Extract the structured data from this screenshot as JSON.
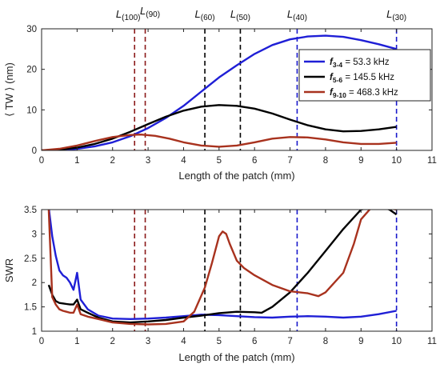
{
  "chart_data": [
    {
      "type": "line",
      "xlabel": "Length of the patch (mm)",
      "ylabel": "⟨ TW ⟩ (nm)",
      "xlim": [
        0,
        11
      ],
      "ylim": [
        0,
        30
      ],
      "xticks": [
        0,
        1,
        2,
        3,
        4,
        5,
        6,
        7,
        8,
        9,
        10,
        11
      ],
      "yticks": [
        0,
        10,
        20,
        30
      ],
      "legend_position": "top-right",
      "markers": [
        {
          "label": "L",
          "sub": "(100)",
          "x": 2.62,
          "color": "#8b1a1a"
        },
        {
          "label": "L",
          "sub": "(90)",
          "x": 2.92,
          "color": "#8b1a1a"
        },
        {
          "label": "L",
          "sub": "(60)",
          "x": 4.6,
          "color": "#000000"
        },
        {
          "label": "L",
          "sub": "(50)",
          "x": 5.6,
          "color": "#000000"
        },
        {
          "label": "L",
          "sub": "(40)",
          "x": 7.2,
          "color": "#1a1acc"
        },
        {
          "label": "L",
          "sub": "(30)",
          "x": 10.0,
          "color": "#1a1acc"
        }
      ],
      "series": [
        {
          "name": "f3-4 = 53.3 kHz",
          "legend_f": "f",
          "legend_sub": "3-4",
          "legend_rest": " = 53.3 kHz",
          "color": "#1f1fd6",
          "x": [
            0,
            0.5,
            1,
            1.5,
            2,
            2.5,
            3,
            3.5,
            4,
            4.5,
            5,
            5.5,
            6,
            6.5,
            7,
            7.5,
            8,
            8.5,
            9,
            9.5,
            10
          ],
          "y": [
            0,
            0.1,
            0.4,
            1.0,
            2.0,
            3.5,
            5.5,
            8.0,
            11.0,
            14.5,
            18.0,
            21.0,
            23.8,
            26.0,
            27.4,
            28.1,
            28.3,
            28.0,
            27.2,
            26.2,
            25.0
          ]
        },
        {
          "name": "f5-6 = 145.5 kHz",
          "legend_f": "f",
          "legend_sub": "5-6",
          "legend_rest": " = 145.5 kHz",
          "color": "#000000",
          "x": [
            0,
            0.5,
            1,
            1.5,
            2,
            2.5,
            3,
            3.5,
            4,
            4.5,
            5,
            5.5,
            6,
            6.5,
            7,
            7.5,
            8,
            8.5,
            9,
            9.5,
            10
          ],
          "y": [
            0,
            0.2,
            0.7,
            1.6,
            2.9,
            4.6,
            6.5,
            8.3,
            9.8,
            10.8,
            11.2,
            11.0,
            10.3,
            9.1,
            7.6,
            6.2,
            5.2,
            4.7,
            4.8,
            5.2,
            5.8
          ]
        },
        {
          "name": "f9-10 = 468.3 kHz",
          "legend_f": "f",
          "legend_sub": "9-10",
          "legend_rest": " = 468.3 kHz",
          "color": "#a8321e",
          "x": [
            0,
            0.5,
            1,
            1.5,
            2,
            2.5,
            2.8,
            3.2,
            3.6,
            4,
            4.5,
            5,
            5.5,
            6,
            6.5,
            7,
            7.5,
            8,
            8.5,
            9,
            9.5,
            10
          ],
          "y": [
            0,
            0.4,
            1.2,
            2.3,
            3.3,
            3.8,
            3.9,
            3.6,
            2.9,
            2.0,
            1.2,
            0.9,
            1.2,
            2.0,
            2.9,
            3.3,
            3.2,
            2.7,
            2.0,
            1.6,
            1.6,
            1.9
          ]
        }
      ]
    },
    {
      "type": "line",
      "xlabel": "Length of the patch (mm)",
      "ylabel": "SWR",
      "xlim": [
        0,
        11
      ],
      "ylim": [
        1,
        3.5
      ],
      "xticks": [
        0,
        1,
        2,
        3,
        4,
        5,
        6,
        7,
        8,
        9,
        10,
        11
      ],
      "yticks": [
        1,
        1.5,
        2,
        2.5,
        3,
        3.5
      ],
      "markers_x": [
        2.62,
        2.92,
        4.6,
        5.6,
        7.2,
        10.0
      ],
      "series": [
        {
          "name": "f3-4 = 53.3 kHz",
          "color": "#1f1fd6",
          "x": [
            0.2,
            0.3,
            0.4,
            0.5,
            0.6,
            0.7,
            0.8,
            0.9,
            1.0,
            1.1,
            1.3,
            1.6,
            2.0,
            2.5,
            3.0,
            3.5,
            4.0,
            4.5,
            5.0,
            5.5,
            6.0,
            6.5,
            7.0,
            7.5,
            8.0,
            8.5,
            9.0,
            9.5,
            10.0
          ],
          "y": [
            3.55,
            2.95,
            2.55,
            2.25,
            2.15,
            2.1,
            2.0,
            1.85,
            2.2,
            1.65,
            1.45,
            1.32,
            1.26,
            1.25,
            1.26,
            1.28,
            1.31,
            1.34,
            1.33,
            1.31,
            1.29,
            1.28,
            1.3,
            1.31,
            1.3,
            1.28,
            1.3,
            1.35,
            1.42
          ]
        },
        {
          "name": "f5-6 = 145.5 kHz",
          "color": "#000000",
          "x": [
            0.2,
            0.3,
            0.4,
            0.5,
            0.6,
            0.7,
            0.8,
            0.9,
            1.0,
            1.1,
            1.3,
            1.6,
            2.0,
            2.5,
            3.0,
            3.5,
            4.0,
            4.5,
            5.0,
            5.5,
            6.0,
            6.2,
            6.5,
            7.0,
            7.5,
            8.0,
            8.5,
            9.0,
            9.3,
            9.6,
            9.8,
            10.0
          ],
          "y": [
            1.95,
            1.75,
            1.62,
            1.58,
            1.57,
            1.56,
            1.55,
            1.55,
            1.65,
            1.45,
            1.38,
            1.28,
            1.2,
            1.18,
            1.2,
            1.23,
            1.28,
            1.32,
            1.37,
            1.4,
            1.39,
            1.38,
            1.5,
            1.8,
            2.2,
            2.65,
            3.1,
            3.5,
            3.55,
            3.55,
            3.5,
            3.4
          ]
        },
        {
          "name": "f9-10 = 468.3 kHz",
          "color": "#a8321e",
          "x": [
            0.2,
            0.25,
            0.3,
            0.4,
            0.5,
            0.6,
            0.7,
            0.8,
            0.9,
            1.0,
            1.1,
            1.3,
            1.6,
            2.0,
            2.5,
            3.0,
            3.5,
            4.0,
            4.3,
            4.6,
            4.8,
            5.0,
            5.1,
            5.2,
            5.3,
            5.5,
            5.7,
            6.0,
            6.5,
            7.0,
            7.5,
            7.8,
            8.0,
            8.5,
            8.8,
            9.0,
            9.3,
            9.6,
            10.0
          ],
          "y": [
            3.5,
            2.6,
            1.7,
            1.55,
            1.45,
            1.42,
            1.4,
            1.38,
            1.38,
            1.55,
            1.35,
            1.3,
            1.25,
            1.18,
            1.15,
            1.14,
            1.15,
            1.2,
            1.4,
            1.9,
            2.4,
            2.95,
            3.05,
            3.0,
            2.8,
            2.45,
            2.3,
            2.15,
            1.95,
            1.82,
            1.78,
            1.72,
            1.8,
            2.2,
            2.8,
            3.3,
            3.55,
            3.55,
            3.5
          ]
        }
      ]
    }
  ]
}
